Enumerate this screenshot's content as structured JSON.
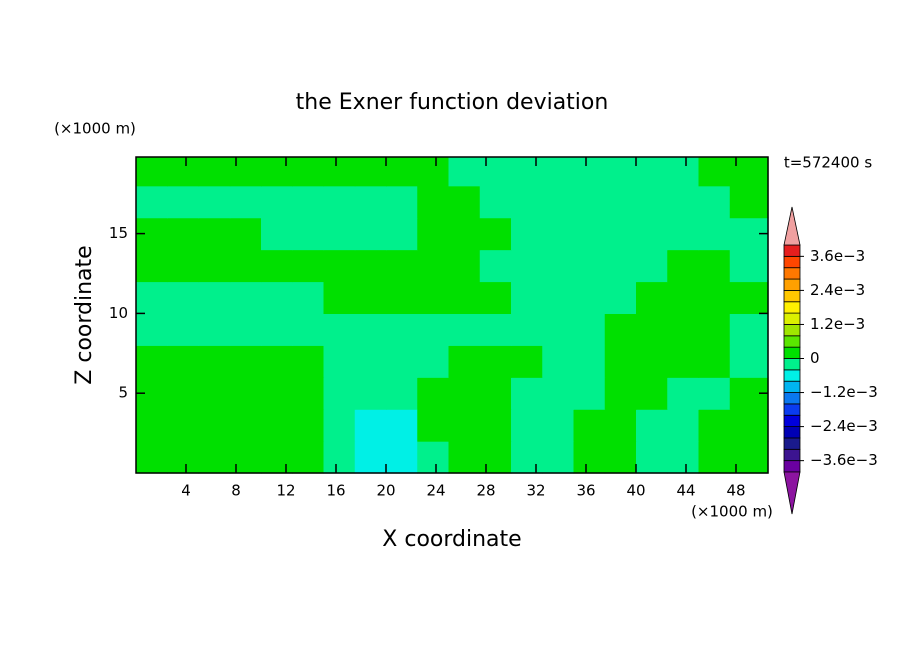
{
  "chart_data": {
    "type": "contour",
    "title": "the Exner function deviation",
    "x_label": "X coordinate",
    "y_label": "Z coordinate",
    "x_unit": "(×1000 m)",
    "y_unit": "(×1000 m)",
    "time_label": "t=572400 s",
    "xlim": [
      0,
      50.56
    ],
    "ylim": [
      0,
      19.8
    ],
    "xticks": [
      4,
      8,
      12,
      16,
      20,
      24,
      28,
      32,
      36,
      40,
      44,
      48
    ],
    "yticks": [
      5,
      10,
      15
    ],
    "x": [
      1.25,
      3.75,
      6.25,
      8.75,
      11.25,
      13.75,
      16.25,
      18.75,
      21.25,
      23.75,
      26.25,
      28.75,
      31.25,
      33.75,
      36.25,
      38.75,
      41.25,
      43.75,
      46.25,
      48.75
    ],
    "y": [
      1,
      3,
      5,
      7,
      9,
      11,
      13,
      15,
      17,
      19
    ],
    "z": [
      [
        0.0002,
        0.0002,
        0.0002,
        0.0002,
        0.0002,
        0.0002,
        -0.0002,
        -0.0006,
        -0.0006,
        -0.0002,
        0.0002,
        0.0002,
        -0.0002,
        -0.0002,
        0.0002,
        0.0002,
        -0.0002,
        -0.0002,
        0.0002,
        0.0002
      ],
      [
        0.0002,
        0.0002,
        0.0002,
        0.0002,
        0.0002,
        0.0002,
        -0.0002,
        -0.0006,
        -0.0006,
        0.0002,
        0.0002,
        0.0002,
        -0.0002,
        -0.0002,
        0.0002,
        0.0002,
        -0.0002,
        -0.0002,
        0.0002,
        0.0002
      ],
      [
        0.0002,
        0.0002,
        0.0002,
        0.0002,
        0.0002,
        0.0002,
        -0.0002,
        -0.0002,
        -0.0002,
        0.0002,
        0.0002,
        0.0002,
        -0.0002,
        -0.0002,
        -0.0002,
        0.0002,
        0.0002,
        -0.0002,
        -0.0002,
        0.0002
      ],
      [
        0.0002,
        0.0002,
        0.0002,
        0.0002,
        0.0002,
        0.0002,
        -0.0002,
        -0.0002,
        -0.0002,
        -0.0002,
        0.0002,
        0.0002,
        0.0002,
        -0.0002,
        -0.0002,
        0.0002,
        0.0002,
        0.0002,
        0.0002,
        -0.0002
      ],
      [
        -0.0002,
        -0.0002,
        -0.0002,
        -0.0002,
        -0.0002,
        -0.0002,
        -0.0002,
        -0.0002,
        -0.0002,
        -0.0002,
        -0.0002,
        -0.0002,
        -0.0002,
        -0.0002,
        -0.0002,
        0.0002,
        0.0002,
        0.0002,
        0.0002,
        -0.0002
      ],
      [
        -0.0002,
        -0.0002,
        -0.0002,
        -0.0002,
        -0.0002,
        -0.0002,
        0.0002,
        0.0002,
        0.0002,
        0.0002,
        0.0002,
        0.0002,
        -0.0002,
        -0.0002,
        -0.0002,
        -0.0002,
        0.0002,
        0.0002,
        0.0002,
        0.0002
      ],
      [
        0.0002,
        0.0002,
        0.0002,
        0.0002,
        0.0002,
        0.0002,
        0.0002,
        0.0002,
        0.0002,
        0.0002,
        0.0002,
        -0.0002,
        -0.0002,
        -0.0002,
        -0.0002,
        -0.0002,
        -0.0002,
        0.0002,
        0.0002,
        -0.0002
      ],
      [
        0.0002,
        0.0002,
        0.0002,
        0.0002,
        -0.0002,
        -0.0002,
        -0.0002,
        -0.0002,
        -0.0002,
        0.0002,
        0.0002,
        0.0002,
        -0.0002,
        -0.0002,
        -0.0002,
        -0.0002,
        -0.0002,
        -0.0002,
        -0.0002,
        -0.0002
      ],
      [
        -0.0002,
        -0.0002,
        -0.0002,
        -0.0002,
        -0.0002,
        -0.0002,
        -0.0002,
        -0.0002,
        -0.0002,
        0.0002,
        0.0002,
        -0.0002,
        -0.0002,
        -0.0002,
        -0.0002,
        -0.0002,
        -0.0002,
        -0.0002,
        -0.0002,
        0.0002
      ],
      [
        0.0002,
        0.0002,
        0.0002,
        0.0002,
        0.0002,
        0.0002,
        0.0002,
        0.0002,
        0.0002,
        0.0002,
        -0.0002,
        -0.0002,
        -0.0002,
        -0.0002,
        -0.0002,
        -0.0002,
        -0.0002,
        -0.0002,
        0.0002,
        0.0002
      ]
    ],
    "levels": [
      -0.004,
      -0.0036,
      -0.0032,
      -0.0028,
      -0.0024,
      -0.002,
      -0.0016,
      -0.0012,
      -0.0008,
      -0.0004,
      0,
      0.0004,
      0.0008,
      0.0012,
      0.0016,
      0.002,
      0.0024,
      0.0028,
      0.0032,
      0.0036,
      0.004
    ],
    "colors": [
      "#6a00a0",
      "#3c1490",
      "#1a1a8c",
      "#0000b4",
      "#0000dc",
      "#0a3cf0",
      "#0a78f0",
      "#00b4f0",
      "#00f0e6",
      "#00f08c",
      "#00e000",
      "#5ae600",
      "#a0e600",
      "#dcf000",
      "#fff000",
      "#ffc800",
      "#ffa000",
      "#ff7800",
      "#ff4600",
      "#e61e1e"
    ],
    "under_color": "#8c14a0",
    "over_color": "#f0a0a0",
    "colorbar_ticks": [
      {
        "value": -0.0036,
        "label": "−3.6e−3"
      },
      {
        "value": -0.0024,
        "label": "−2.4e−3"
      },
      {
        "value": -0.0012,
        "label": "−1.2e−3"
      },
      0,
      {
        "value": 0.0012,
        "label": "1.2e−3"
      },
      {
        "value": 0.0024,
        "label": "2.4e−3"
      },
      {
        "value": 0.0036,
        "label": "3.6e−3"
      }
    ]
  }
}
